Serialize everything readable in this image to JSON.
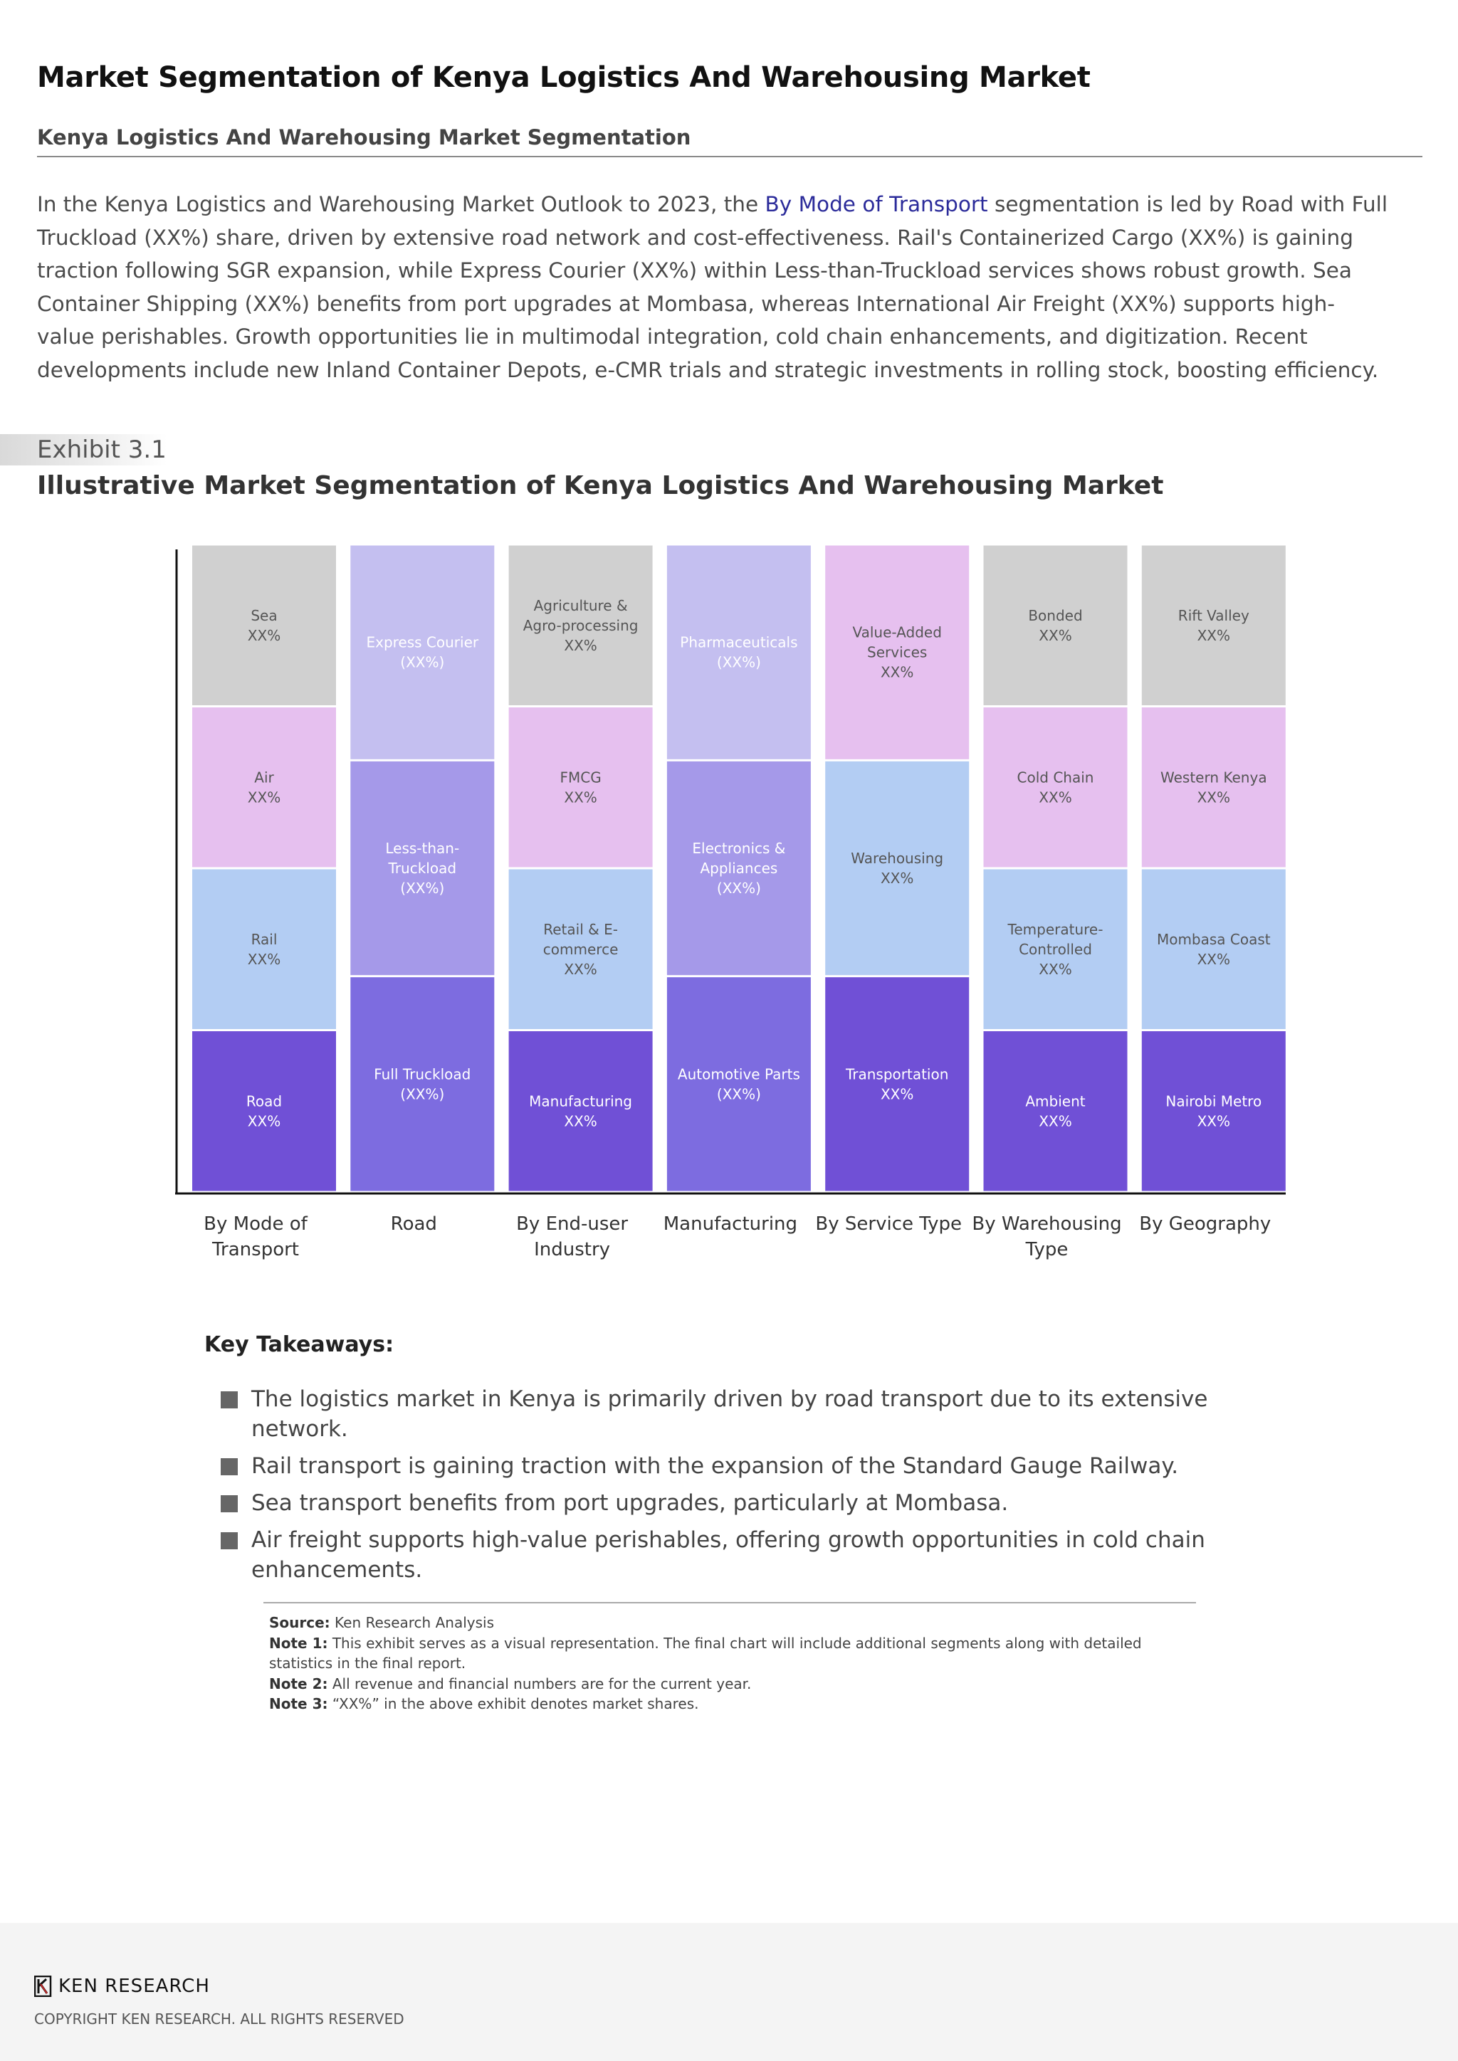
{
  "header": {
    "title": "Market Segmentation of Kenya Logistics And Warehousing Market",
    "subtitle": "Kenya Logistics And Warehousing Market Segmentation"
  },
  "intro": {
    "part1": "In the Kenya Logistics and Warehousing Market Outlook to 2023, the ",
    "highlight": "By Mode of Transport",
    "part2": " segmentation is led by Road with Full Truckload (XX%) share, driven by extensive road network and cost-effectiveness. Rail's Containerized Cargo (XX%) is gaining traction following SGR expansion, while Express Courier (XX%) within Less-than-Truckload services shows robust growth. Sea Container Shipping (XX%) benefits from port upgrades at Mombasa, whereas International Air Freight (XX%) supports high-value perishables. Growth opportunities lie in multimodal integration, cold chain enhancements, and digitization. Recent developments include new Inland Container Depots, e-CMR trials and strategic investments in rolling stock, boosting efficiency."
  },
  "exhibit": {
    "number": "Exhibit 3.1",
    "title": "Illustrative Market Segmentation of Kenya Logistics And Warehousing Market"
  },
  "chart_data": {
    "type": "bar",
    "stacked": true,
    "values_are_placeholders": true,
    "categories": [
      "By Mode of Transport",
      "Road",
      "By End-user Industry",
      "Manufacturing",
      "By Service Type",
      "By Warehousing Type",
      "By Geography"
    ],
    "columns": [
      {
        "axis_label": [
          "By Mode of",
          "Transport"
        ],
        "segments": [
          {
            "label": [
              "Road",
              "XX%"
            ],
            "color": "#7050d6",
            "text": "#ffffff"
          },
          {
            "label": [
              "Rail",
              "XX%"
            ],
            "color": "#b3cdf3",
            "text": "#555555"
          },
          {
            "label": [
              "Air",
              "XX%"
            ],
            "color": "#e6c0ef",
            "text": "#555555"
          },
          {
            "label": [
              "Sea",
              "XX%"
            ],
            "color": "#d0d0d0",
            "text": "#555555"
          }
        ]
      },
      {
        "axis_label": [
          "Road"
        ],
        "segments": [
          {
            "label": [
              "Full Truckload",
              "(XX%)"
            ],
            "color": "#7d6ce0",
            "text": "#ffffff"
          },
          {
            "label": [
              "Less-than-",
              "Truckload",
              "(XX%)"
            ],
            "color": "#a599e9",
            "text": "#ffffff"
          },
          {
            "label": [
              "Express Courier",
              "(XX%)"
            ],
            "color": "#c4bff0",
            "text": "#ffffff"
          }
        ]
      },
      {
        "axis_label": [
          "By End-user",
          "Industry"
        ],
        "segments": [
          {
            "label": [
              "Manufacturing",
              "XX%"
            ],
            "color": "#7050d6",
            "text": "#ffffff"
          },
          {
            "label": [
              "Retail & E-",
              "commerce",
              "XX%"
            ],
            "color": "#b3cdf3",
            "text": "#555555"
          },
          {
            "label": [
              "FMCG",
              "XX%"
            ],
            "color": "#e6c0ef",
            "text": "#555555"
          },
          {
            "label": [
              "Agriculture &",
              "Agro-processing",
              "XX%"
            ],
            "color": "#d0d0d0",
            "text": "#555555"
          }
        ]
      },
      {
        "axis_label": [
          "Manufacturing"
        ],
        "segments": [
          {
            "label": [
              "Automotive Parts",
              "(XX%)"
            ],
            "color": "#7d6ce0",
            "text": "#ffffff"
          },
          {
            "label": [
              "Electronics &",
              "Appliances",
              "(XX%)"
            ],
            "color": "#a599e9",
            "text": "#ffffff"
          },
          {
            "label": [
              "Pharmaceuticals",
              "(XX%)"
            ],
            "color": "#c4bff0",
            "text": "#ffffff"
          }
        ]
      },
      {
        "axis_label": [
          "By Service Type"
        ],
        "segments": [
          {
            "label": [
              "Transportation",
              "XX%"
            ],
            "color": "#7050d6",
            "text": "#ffffff"
          },
          {
            "label": [
              "Warehousing",
              "XX%"
            ],
            "color": "#b3cdf3",
            "text": "#555555"
          },
          {
            "label": [
              "Value-Added",
              "Services",
              "XX%"
            ],
            "color": "#e6c0ef",
            "text": "#555555"
          }
        ]
      },
      {
        "axis_label": [
          "By Warehousing",
          "Type"
        ],
        "segments": [
          {
            "label": [
              "Ambient",
              "XX%"
            ],
            "color": "#7050d6",
            "text": "#ffffff"
          },
          {
            "label": [
              "Temperature-",
              "Controlled",
              "XX%"
            ],
            "color": "#b3cdf3",
            "text": "#555555"
          },
          {
            "label": [
              "Cold Chain",
              "XX%"
            ],
            "color": "#e6c0ef",
            "text": "#555555"
          },
          {
            "label": [
              "Bonded",
              "XX%"
            ],
            "color": "#d0d0d0",
            "text": "#555555"
          }
        ]
      },
      {
        "axis_label": [
          "By Geography"
        ],
        "segments": [
          {
            "label": [
              "Nairobi Metro",
              "XX%"
            ],
            "color": "#7050d6",
            "text": "#ffffff"
          },
          {
            "label": [
              "Mombasa Coast",
              "XX%"
            ],
            "color": "#b3cdf3",
            "text": "#555555"
          },
          {
            "label": [
              "Western Kenya",
              "XX%"
            ],
            "color": "#e6c0ef",
            "text": "#555555"
          },
          {
            "label": [
              "Rift Valley",
              "XX%"
            ],
            "color": "#d0d0d0",
            "text": "#555555"
          }
        ]
      }
    ]
  },
  "takeaways": {
    "heading": "Key Takeaways:",
    "items": [
      "The logistics market in Kenya is primarily driven by road transport due to its extensive network.",
      "Rail transport is gaining traction with the expansion of the Standard Gauge Railway.",
      "Sea transport benefits from port upgrades, particularly at Mombasa.",
      "Air freight supports high-value perishables, offering growth opportunities in cold chain enhancements."
    ]
  },
  "notes": {
    "source_label": "Source:",
    "source_text": " Ken Research Analysis",
    "note1_label": "Note 1:",
    "note1_text": " This exhibit serves as a visual representation. The final chart will include additional segments along with detailed statistics in the final report.",
    "note2_label": "Note 2:",
    "note2_text": " All revenue and financial numbers are for the current year.",
    "note3_label": "Note 3:",
    "note3_text": " “XX%” in the above exhibit denotes market shares."
  },
  "footer": {
    "logo_text": "KEN RESEARCH",
    "copyright": "COPYRIGHT KEN RESEARCH. ALL RIGHTS RESERVED"
  }
}
